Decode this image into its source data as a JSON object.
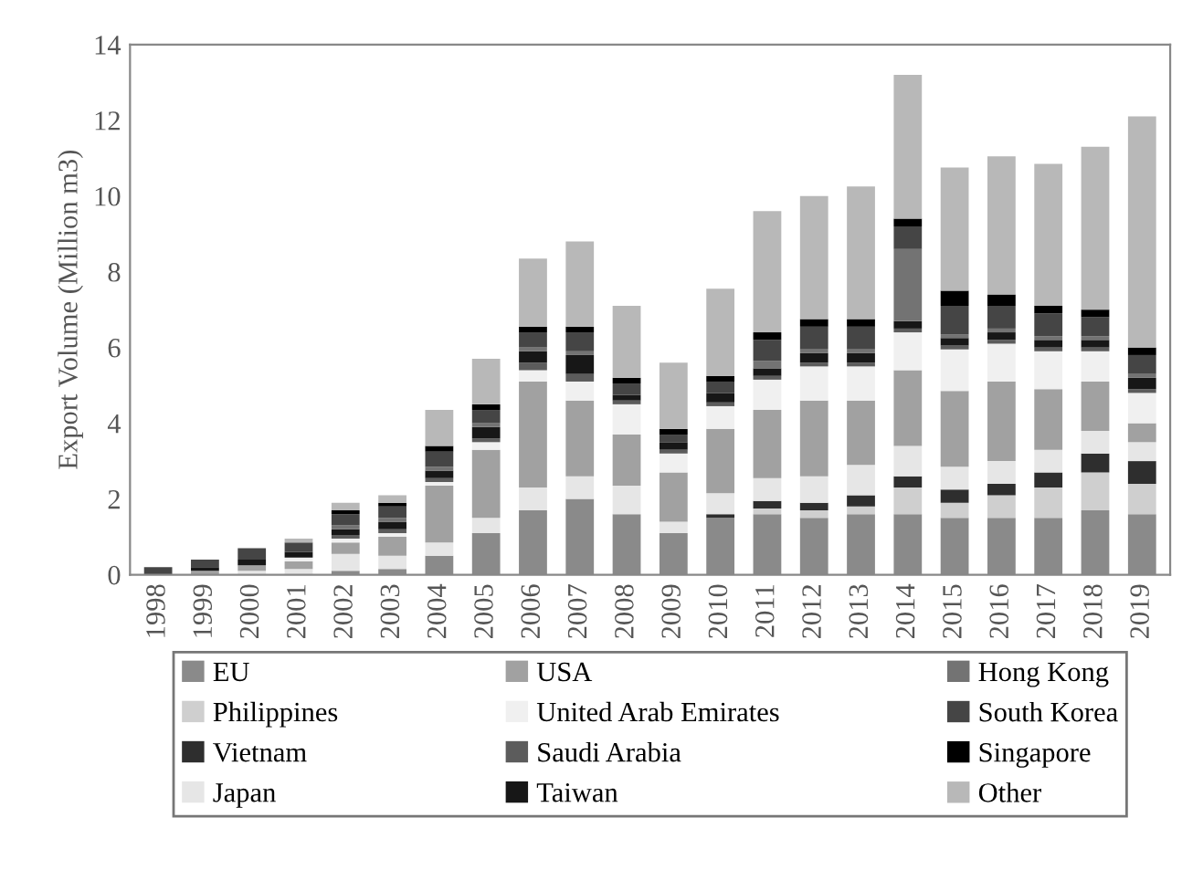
{
  "chart_data": {
    "type": "bar",
    "stacked": true,
    "ylabel": "Export Volume (Million m3)",
    "categories": [
      "1998",
      "1999",
      "2000",
      "2001",
      "2002",
      "2003",
      "2004",
      "2005",
      "2006",
      "2007",
      "2008",
      "2009",
      "2010",
      "2011",
      "2012",
      "2013",
      "2014",
      "2015",
      "2016",
      "2017",
      "2018",
      "2019"
    ],
    "ylim": [
      0,
      14
    ],
    "yticks": [
      0,
      2,
      4,
      6,
      8,
      10,
      12,
      14
    ],
    "grid": false,
    "legend": "bottom",
    "series": [
      {
        "name": "EU",
        "color": "#8a8a8a",
        "values": [
          0,
          0,
          0,
          0,
          0.1,
          0.15,
          0.5,
          1.1,
          1.7,
          2.0,
          1.6,
          1.1,
          1.5,
          1.6,
          1.5,
          1.6,
          1.6,
          1.5,
          1.5,
          1.5,
          1.7,
          1.6
        ]
      },
      {
        "name": "Philippines",
        "color": "#cfcfcf",
        "values": [
          0,
          0,
          0,
          0,
          0,
          0,
          0,
          0,
          0,
          0,
          0,
          0,
          0,
          0.15,
          0.2,
          0.2,
          0.7,
          0.4,
          0.6,
          0.8,
          1.0,
          0.8
        ]
      },
      {
        "name": "Vietnam",
        "color": "#2e2e2e",
        "values": [
          0,
          0,
          0,
          0,
          0,
          0,
          0,
          0,
          0,
          0,
          0,
          0,
          0.1,
          0.2,
          0.2,
          0.3,
          0.3,
          0.35,
          0.3,
          0.4,
          0.5,
          0.6
        ]
      },
      {
        "name": "Japan",
        "color": "#e6e6e6",
        "values": [
          0,
          0,
          0.1,
          0.15,
          0.45,
          0.35,
          0.35,
          0.4,
          0.6,
          0.6,
          0.75,
          0.3,
          0.55,
          0.6,
          0.7,
          0.8,
          0.8,
          0.6,
          0.6,
          0.6,
          0.6,
          0.5
        ]
      },
      {
        "name": "USA",
        "color": "#a1a1a1",
        "values": [
          0,
          0.1,
          0.15,
          0.2,
          0.3,
          0.5,
          1.5,
          1.8,
          2.8,
          2.0,
          1.35,
          1.3,
          1.7,
          1.8,
          2.0,
          1.7,
          2.0,
          2.0,
          2.1,
          1.6,
          1.3,
          0.5
        ]
      },
      {
        "name": "United Arab Emirates",
        "color": "#f0f0f0",
        "values": [
          0,
          0,
          0,
          0.1,
          0.1,
          0.1,
          0.1,
          0.2,
          0.3,
          0.5,
          0.8,
          0.5,
          0.6,
          0.8,
          0.9,
          0.9,
          1.0,
          1.1,
          1.0,
          1.0,
          0.8,
          0.8
        ]
      },
      {
        "name": "Saudi Arabia",
        "color": "#5c5c5c",
        "values": [
          0,
          0,
          0,
          0,
          0.1,
          0.1,
          0.1,
          0.1,
          0.2,
          0.2,
          0.1,
          0.1,
          0.1,
          0.1,
          0.1,
          0.1,
          0.1,
          0.1,
          0.1,
          0.1,
          0.1,
          0.1
        ]
      },
      {
        "name": "Taiwan",
        "color": "#171717",
        "values": [
          0,
          0.1,
          0.15,
          0.15,
          0.15,
          0.2,
          0.2,
          0.3,
          0.3,
          0.5,
          0.15,
          0.2,
          0.25,
          0.2,
          0.25,
          0.25,
          0.2,
          0.2,
          0.2,
          0.2,
          0.2,
          0.3
        ]
      },
      {
        "name": "Hong Kong",
        "color": "#737373",
        "values": [
          0,
          0,
          0,
          0,
          0.1,
          0.1,
          0.1,
          0.1,
          0.1,
          0.1,
          0,
          0,
          0,
          0.2,
          0.1,
          0.1,
          1.9,
          0.1,
          0.1,
          0.1,
          0.1,
          0.1
        ]
      },
      {
        "name": "South Korea",
        "color": "#454545",
        "values": [
          0.2,
          0.2,
          0.3,
          0.25,
          0.3,
          0.3,
          0.4,
          0.35,
          0.4,
          0.5,
          0.3,
          0.2,
          0.3,
          0.55,
          0.6,
          0.6,
          0.6,
          0.75,
          0.6,
          0.6,
          0.5,
          0.5
        ]
      },
      {
        "name": "Singapore",
        "color": "#000000",
        "values": [
          0,
          0,
          0,
          0,
          0.1,
          0.1,
          0.15,
          0.15,
          0.15,
          0.15,
          0.15,
          0.15,
          0.15,
          0.2,
          0.2,
          0.2,
          0.2,
          0.4,
          0.3,
          0.2,
          0.2,
          0.2
        ]
      },
      {
        "name": "Other",
        "color": "#b8b8b8",
        "values": [
          0,
          0,
          0,
          0.1,
          0.2,
          0.2,
          0.95,
          1.2,
          1.8,
          2.25,
          1.9,
          1.75,
          2.3,
          3.2,
          3.25,
          3.5,
          3.8,
          3.25,
          3.65,
          3.75,
          4.3,
          6.1
        ]
      }
    ]
  }
}
